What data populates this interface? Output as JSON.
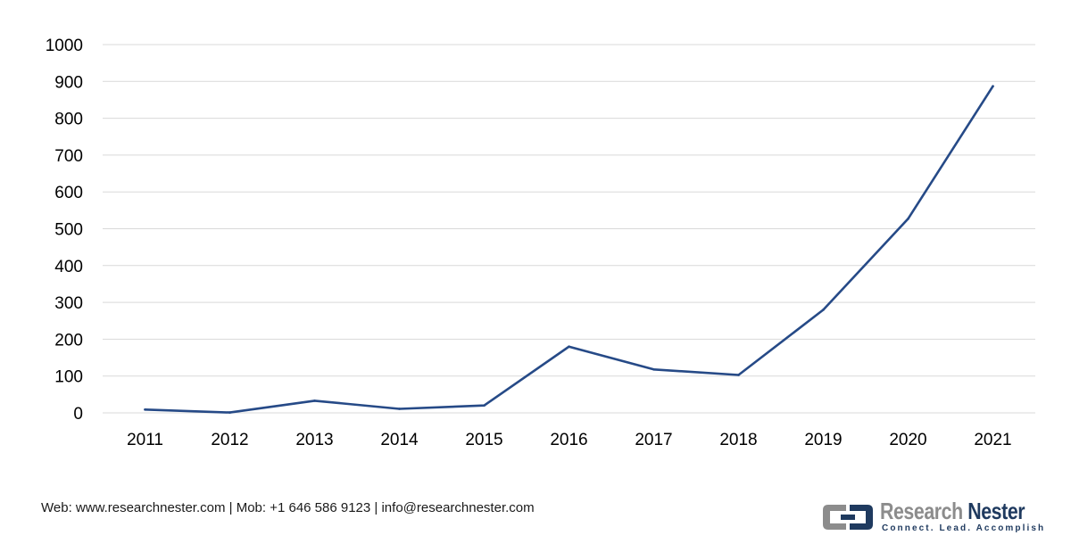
{
  "chart_data": {
    "type": "line",
    "x": [
      "2011",
      "2012",
      "2013",
      "2014",
      "2015",
      "2016",
      "2017",
      "2018",
      "2019",
      "2020",
      "2021"
    ],
    "series": [
      {
        "values": [
          9,
          1,
          33,
          11,
          20,
          180,
          118,
          103,
          280,
          527,
          887
        ]
      }
    ],
    "yticks": [
      "0",
      "100",
      "200",
      "300",
      "400",
      "500",
      "600",
      "700",
      "800",
      "900",
      "1000"
    ],
    "ylim": [
      0,
      1000
    ],
    "grid": true,
    "line_color": "#264a87",
    "grid_color": "#d9d9d9"
  },
  "footer": {
    "contact": "Web: www.researchnester.com | Mob: +1 646 586 9123 | info@researchnester.com"
  },
  "brand": {
    "name_part1": "Research",
    "name_part2": "Nester",
    "tagline": "Connect. Lead. Accomplish",
    "mark_color_dark": "#1f3a5f",
    "mark_color_light": "#8c8c8c"
  }
}
